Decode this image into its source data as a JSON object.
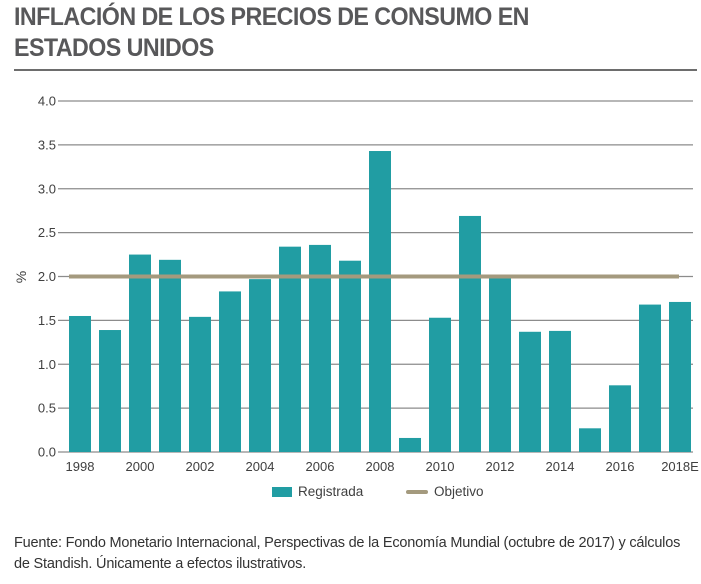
{
  "title_line1": "INFLACIÓN DE LOS PRECIOS DE CONSUMO EN",
  "title_line2": "ESTADOS UNIDOS",
  "footnote": "Fuente: Fondo Monetario Internacional, Perspectivas de la Economía Mundial (octubre de 2017) y cálculos de Standish. Únicamente a efectos ilustrativos.",
  "colors": {
    "bar": "#219da3",
    "target_line": "#a49a7e",
    "grid": "#8c8c8c"
  },
  "chart_data": {
    "type": "bar",
    "title": "INFLACIÓN DE LOS PRECIOS DE CONSUMO EN ESTADOS UNIDOS",
    "xlabel": "",
    "ylabel": "%",
    "ylim": [
      0,
      4.0
    ],
    "yticks": [
      "0.0",
      "0.5",
      "1.0",
      "1.5",
      "2.0",
      "2.5",
      "3.0",
      "3.5",
      "4.0"
    ],
    "ytick_values": [
      0,
      0.5,
      1.0,
      1.5,
      2.0,
      2.5,
      3.0,
      3.5,
      4.0
    ],
    "grid": true,
    "categories": [
      "1998",
      "1999",
      "2000",
      "2001",
      "2002",
      "2003",
      "2004",
      "2005",
      "2006",
      "2007",
      "2008",
      "2009",
      "2010",
      "2011",
      "2012",
      "2013",
      "2014",
      "2015",
      "2016",
      "2017",
      "2018E"
    ],
    "xtick_labels": [
      "1998",
      "",
      "2000",
      "",
      "2002",
      "",
      "2004",
      "",
      "2006",
      "",
      "2008",
      "",
      "2010",
      "",
      "2012",
      "",
      "2014",
      "",
      "2016",
      "",
      "2018E"
    ],
    "series": [
      {
        "name": "Registrada",
        "type": "bar",
        "values": [
          1.55,
          1.39,
          2.25,
          2.19,
          1.54,
          1.83,
          1.97,
          2.34,
          2.36,
          2.18,
          3.43,
          0.16,
          1.53,
          2.69,
          1.98,
          1.37,
          1.38,
          0.27,
          0.76,
          1.68,
          1.71
        ]
      },
      {
        "name": "Objetivo",
        "type": "line",
        "values": [
          2.0,
          2.0,
          2.0,
          2.0,
          2.0,
          2.0,
          2.0,
          2.0,
          2.0,
          2.0,
          2.0,
          2.0,
          2.0,
          2.0,
          2.0,
          2.0,
          2.0,
          2.0,
          2.0,
          2.0,
          2.0
        ]
      }
    ],
    "legend": {
      "placement": "bottom-center",
      "items": [
        "Registrada",
        "Objetivo"
      ]
    }
  }
}
